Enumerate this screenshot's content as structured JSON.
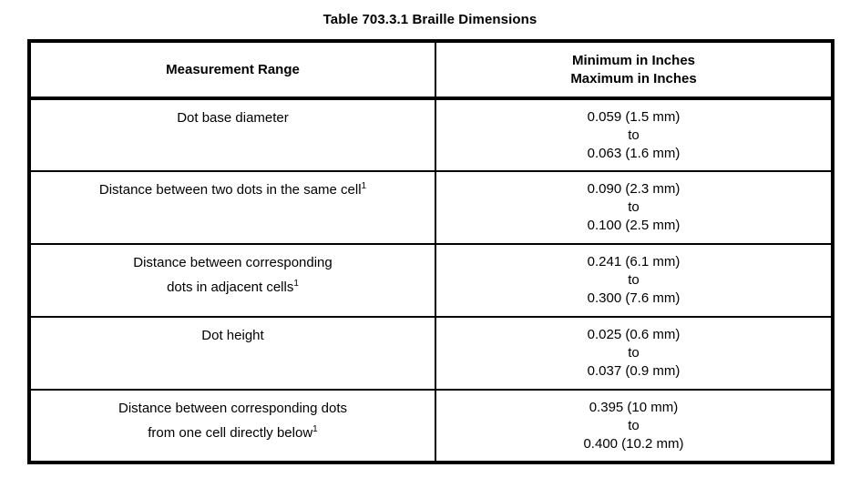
{
  "page_title": "Table 703.3.1 Braille Dimensions",
  "colors": {
    "border": "#000000",
    "text": "#000000",
    "background": "#ffffff"
  },
  "table": {
    "header": {
      "measurement_range": "Measurement Range",
      "min_max_line1": "Minimum in Inches",
      "min_max_line2": "Maximum in Inches"
    },
    "rows": [
      {
        "label": "Dot base diameter",
        "footnote": "",
        "min": "0.059 (1.5 mm)",
        "connector": "to",
        "max": "0.063 (1.6 mm)"
      },
      {
        "label": "Distance between two dots in the same cell",
        "footnote": "1",
        "min": "0.090 (2.3 mm)",
        "connector": "to",
        "max": "0.100 (2.5 mm)"
      },
      {
        "label_line1": "Distance between corresponding",
        "label_line2": "dots in adjacent cells",
        "footnote": "1",
        "min": "0.241 (6.1 mm)",
        "connector": "to",
        "max": "0.300 (7.6 mm)"
      },
      {
        "label": "Dot height",
        "footnote": "",
        "min": "0.025 (0.6 mm)",
        "connector": "to",
        "max": "0.037 (0.9 mm)"
      },
      {
        "label_line1": "Distance between corresponding dots",
        "label_line2": "from one cell directly below",
        "footnote": "1",
        "min": "0.395 (10 mm)",
        "connector": "to",
        "max": "0.400 (10.2 mm)"
      }
    ]
  }
}
